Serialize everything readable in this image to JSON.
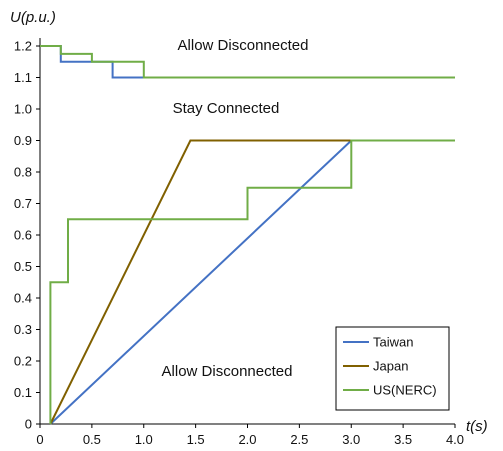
{
  "chart_data": {
    "type": "line",
    "xlabel": "t(s)",
    "ylabel": "U(p.u.)",
    "xlim": [
      0,
      4.0
    ],
    "ylim": [
      0,
      1.2
    ],
    "x_ticks": [
      "0",
      "0.5",
      "1.0",
      "1.5",
      "2.0",
      "2.5",
      "3.0",
      "3.5",
      "4.0"
    ],
    "y_ticks": [
      "0",
      "0.1",
      "0.2",
      "0.3",
      "0.4",
      "0.5",
      "0.6",
      "0.7",
      "0.8",
      "0.9",
      "1.0",
      "1.1",
      "1.2"
    ],
    "grid": false,
    "legend_position": "bottom-right",
    "annotations": [
      "Allow Disconnected",
      "Stay Connected",
      "Allow Disconnected"
    ],
    "series": [
      {
        "name": "Taiwan",
        "color": "#4472c4",
        "upper": {
          "x": [
            0,
            0.2,
            0.2,
            0.7,
            0.7,
            4.0
          ],
          "y": [
            1.2,
            1.2,
            1.15,
            1.15,
            1.1,
            1.1
          ]
        },
        "lower": {
          "x": [
            0.1,
            3.0,
            4.0
          ],
          "y": [
            0,
            0.9,
            0.9
          ]
        }
      },
      {
        "name": "Japan",
        "color": "#806000",
        "lower": {
          "x": [
            0.1,
            1.45,
            3.0
          ],
          "y": [
            0,
            0.9,
            0.9
          ]
        }
      },
      {
        "name": "US(NERC)",
        "color": "#70ad47",
        "upper": {
          "x": [
            0,
            0.2,
            0.2,
            0.5,
            0.5,
            1.0,
            1.0,
            4.0
          ],
          "y": [
            1.2,
            1.2,
            1.175,
            1.175,
            1.15,
            1.15,
            1.1,
            1.1
          ]
        },
        "lower": {
          "x": [
            0.1,
            0.1,
            0.27,
            0.27,
            0.3,
            0.3,
            2.0,
            2.0,
            3.0,
            3.0,
            4.0
          ],
          "y": [
            0,
            0.45,
            0.45,
            0.65,
            0.65,
            0.65,
            0.65,
            0.75,
            0.75,
            0.9,
            0.9
          ]
        }
      }
    ]
  }
}
